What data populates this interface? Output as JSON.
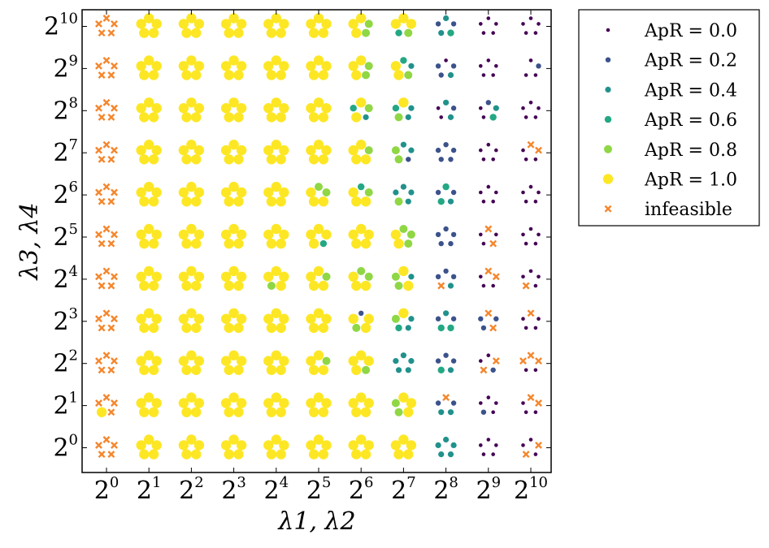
{
  "chart_data": {
    "type": "scatter",
    "xlabel": "λ1, λ2",
    "ylabel": "λ3, λ4",
    "x_ticks": [
      {
        "base": "2",
        "exp": "0"
      },
      {
        "base": "2",
        "exp": "1"
      },
      {
        "base": "2",
        "exp": "2"
      },
      {
        "base": "2",
        "exp": "3"
      },
      {
        "base": "2",
        "exp": "4"
      },
      {
        "base": "2",
        "exp": "5"
      },
      {
        "base": "2",
        "exp": "6"
      },
      {
        "base": "2",
        "exp": "7"
      },
      {
        "base": "2",
        "exp": "8"
      },
      {
        "base": "2",
        "exp": "9"
      },
      {
        "base": "2",
        "exp": "10"
      }
    ],
    "y_ticks": [
      {
        "base": "2",
        "exp": "0"
      },
      {
        "base": "2",
        "exp": "1"
      },
      {
        "base": "2",
        "exp": "2"
      },
      {
        "base": "2",
        "exp": "3"
      },
      {
        "base": "2",
        "exp": "4"
      },
      {
        "base": "2",
        "exp": "5"
      },
      {
        "base": "2",
        "exp": "6"
      },
      {
        "base": "2",
        "exp": "7"
      },
      {
        "base": "2",
        "exp": "8"
      },
      {
        "base": "2",
        "exp": "9"
      },
      {
        "base": "2",
        "exp": "10"
      }
    ],
    "x_exponents": [
      0,
      1,
      2,
      3,
      4,
      5,
      6,
      7,
      8,
      9,
      10
    ],
    "y_exponents": [
      0,
      1,
      2,
      3,
      4,
      5,
      6,
      7,
      8,
      9,
      10
    ],
    "scale": "log2",
    "grid": false,
    "legend_position": "outside-top-right",
    "legend": [
      {
        "label": "ApR = 0.0",
        "key": "0.0"
      },
      {
        "label": "ApR = 0.2",
        "key": "0.2"
      },
      {
        "label": "ApR = 0.4",
        "key": "0.4"
      },
      {
        "label": "ApR = 0.6",
        "key": "0.6"
      },
      {
        "label": "ApR = 0.8",
        "key": "0.8"
      },
      {
        "label": "ApR = 1.0",
        "key": "1.0"
      },
      {
        "label": "infeasible",
        "key": "X"
      }
    ],
    "colors": {
      "0.0": "#440154",
      "0.2": "#3b528b",
      "0.4": "#21918c",
      "0.6": "#23a883",
      "0.8": "#8fd744",
      "1.0": "#fde725",
      "X": "#f5862c"
    },
    "cells": [
      [
        "XXXXX",
        "11111",
        "11111",
        "11111",
        "11111",
        "11111",
        "11111",
        "11111",
        "0.40.40.40.40.4",
        "00000",
        "0X0X0"
      ],
      [
        "XXX1X",
        "11111",
        "11111",
        "11111",
        "11111",
        "11111",
        "11111",
        "1110.80.8",
        "X0.20.40.40.2",
        "0000.20",
        "XX000"
      ],
      [
        "XXXXX",
        "11111",
        "11111",
        "11111",
        "11111",
        "10.8111",
        "110.811",
        "0.40.40.40.40.4",
        "0.20.20.40.60.2",
        "0X0.2X0",
        "XX00X"
      ],
      [
        "XXXXX",
        "11111",
        "11111",
        "11111",
        "11111",
        "11111",
        "0.2110.81",
        "10.40.40.60.8",
        "0.40.20.60.60.2",
        "X0.2X0.20.2",
        "X0000"
      ],
      [
        "XXXXX",
        "11111",
        "11111",
        "11111",
        "1110.81",
        "10.8111",
        "0.80.8111",
        "10.410.80.8",
        "0.20.20.4X0.2",
        "XX000",
        "000X0"
      ],
      [
        "XXXXX",
        "11111",
        "11111",
        "11111",
        "11111",
        "110.611",
        "11111",
        "0.80.80.811",
        "0.20.20.20.20.2",
        "X0X00",
        "00000"
      ],
      [
        "XXXXX",
        "11111",
        "11111",
        "11111",
        "11111",
        "0.80.8111",
        "0.60.8111",
        "0.40.40.40.80.4",
        "0.60.20.40.60.2",
        "00000",
        "00000"
      ],
      [
        "XXXXX",
        "11111",
        "11111",
        "11111",
        "11111",
        "11111",
        "10.8111",
        "0.40.40.20.80.8",
        "0.20.20.20.20.2",
        "00000",
        "XX000"
      ],
      [
        "XXXXX",
        "11111",
        "11111",
        "11111",
        "11111",
        "11111",
        "10.80.410.6",
        "10.40.40.80.6",
        "0.40.20.400",
        "0.20.40.600",
        "00000"
      ],
      [
        "XXXXX",
        "11111",
        "11111",
        "11111",
        "11111",
        "11111",
        "10.80.811",
        "0.60.40.811",
        "00.20.40.20.2",
        "00000",
        "00.200"
      ],
      [
        "XXXXX",
        "11111",
        "11111",
        "11111",
        "11111",
        "11111",
        "10.80.811",
        "110.80.61",
        "0.40.20.60.40.2",
        "00000",
        "00000"
      ]
    ]
  }
}
